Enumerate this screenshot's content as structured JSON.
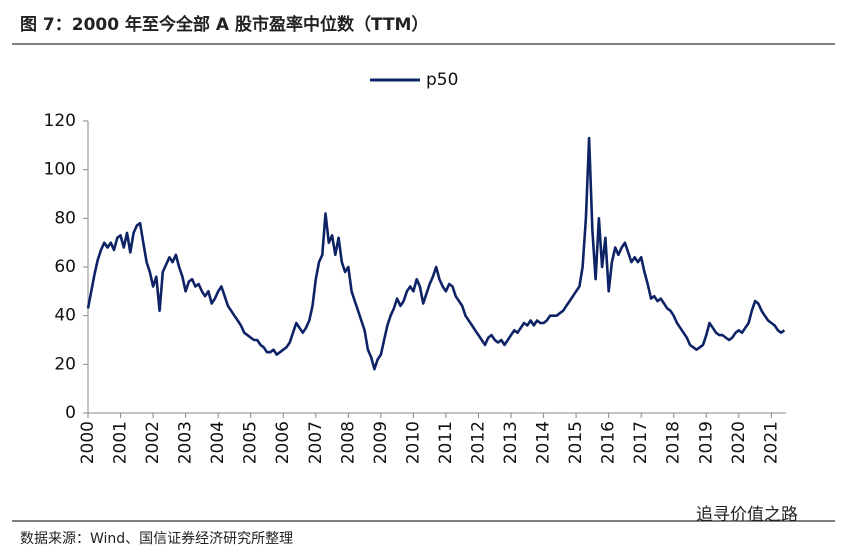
{
  "chart_data": {
    "type": "line",
    "title": "图 7：2000 年至今全部 A 股市盈率中位数（TTM）",
    "source": "数据来源：Wind、国信证券经济研究所整理",
    "watermark": "追寻价值之路",
    "legend": "top",
    "xlim": [
      2000,
      2021.45
    ],
    "xticks": [
      2000,
      2001,
      2002,
      2003,
      2004,
      2005,
      2006,
      2007,
      2008,
      2009,
      2010,
      2011,
      2012,
      2013,
      2014,
      2015,
      2016,
      2017,
      2018,
      2019,
      2020,
      2021
    ],
    "ylim": [
      0,
      120
    ],
    "yticks": [
      0,
      20,
      40,
      60,
      80,
      100,
      120
    ],
    "x": [
      2000.0,
      2000.1,
      2000.2,
      2000.3,
      2000.4,
      2000.5,
      2000.6,
      2000.7,
      2000.8,
      2000.9,
      2001.0,
      2001.1,
      2001.2,
      2001.3,
      2001.4,
      2001.5,
      2001.6,
      2001.7,
      2001.8,
      2001.9,
      2002.0,
      2002.1,
      2002.2,
      2002.3,
      2002.4,
      2002.5,
      2002.6,
      2002.7,
      2002.8,
      2002.9,
      2003.0,
      2003.1,
      2003.2,
      2003.3,
      2003.4,
      2003.5,
      2003.6,
      2003.7,
      2003.8,
      2003.9,
      2004.0,
      2004.1,
      2004.2,
      2004.3,
      2004.4,
      2004.5,
      2004.6,
      2004.7,
      2004.8,
      2004.9,
      2005.0,
      2005.1,
      2005.2,
      2005.3,
      2005.4,
      2005.5,
      2005.6,
      2005.7,
      2005.8,
      2005.9,
      2006.0,
      2006.1,
      2006.2,
      2006.3,
      2006.4,
      2006.5,
      2006.6,
      2006.7,
      2006.8,
      2006.9,
      2007.0,
      2007.1,
      2007.2,
      2007.3,
      2007.4,
      2007.5,
      2007.6,
      2007.7,
      2007.8,
      2007.9,
      2008.0,
      2008.1,
      2008.2,
      2008.3,
      2008.4,
      2008.5,
      2008.6,
      2008.7,
      2008.8,
      2008.9,
      2009.0,
      2009.1,
      2009.2,
      2009.3,
      2009.4,
      2009.5,
      2009.6,
      2009.7,
      2009.8,
      2009.9,
      2010.0,
      2010.1,
      2010.2,
      2010.3,
      2010.4,
      2010.5,
      2010.6,
      2010.7,
      2010.8,
      2010.9,
      2011.0,
      2011.1,
      2011.2,
      2011.3,
      2011.4,
      2011.5,
      2011.6,
      2011.7,
      2011.8,
      2011.9,
      2012.0,
      2012.1,
      2012.2,
      2012.3,
      2012.4,
      2012.5,
      2012.6,
      2012.7,
      2012.8,
      2012.9,
      2013.0,
      2013.1,
      2013.2,
      2013.3,
      2013.4,
      2013.5,
      2013.6,
      2013.7,
      2013.8,
      2013.9,
      2014.0,
      2014.1,
      2014.2,
      2014.3,
      2014.4,
      2014.5,
      2014.6,
      2014.7,
      2014.8,
      2014.9,
      2015.0,
      2015.1,
      2015.2,
      2015.3,
      2015.4,
      2015.5,
      2015.6,
      2015.7,
      2015.8,
      2015.9,
      2016.0,
      2016.1,
      2016.2,
      2016.3,
      2016.4,
      2016.5,
      2016.6,
      2016.7,
      2016.8,
      2016.9,
      2017.0,
      2017.1,
      2017.2,
      2017.3,
      2017.4,
      2017.5,
      2017.6,
      2017.7,
      2017.8,
      2017.9,
      2018.0,
      2018.1,
      2018.2,
      2018.3,
      2018.4,
      2018.5,
      2018.6,
      2018.7,
      2018.8,
      2018.9,
      2019.0,
      2019.1,
      2019.2,
      2019.3,
      2019.4,
      2019.5,
      2019.6,
      2019.7,
      2019.8,
      2019.9,
      2020.0,
      2020.1,
      2020.2,
      2020.3,
      2020.4,
      2020.5,
      2020.6,
      2020.7,
      2020.8,
      2020.9,
      2021.0,
      2021.1,
      2021.2,
      2021.3,
      2021.4
    ],
    "series": [
      {
        "name": "p50",
        "color": "#0d2366",
        "values": [
          43,
          50,
          57,
          63,
          67,
          70,
          68,
          70,
          67,
          72,
          73,
          68,
          74,
          66,
          74,
          77,
          78,
          70,
          62,
          58,
          52,
          56,
          42,
          58,
          61,
          64,
          62,
          65,
          60,
          56,
          50,
          54,
          55,
          52,
          53,
          50,
          48,
          50,
          45,
          47,
          50,
          52,
          48,
          44,
          42,
          40,
          38,
          36,
          33,
          32,
          31,
          30,
          30,
          28,
          27,
          25,
          25,
          26,
          24,
          25,
          26,
          27,
          29,
          33,
          37,
          35,
          33,
          35,
          38,
          44,
          55,
          62,
          65,
          82,
          70,
          73,
          65,
          72,
          62,
          58,
          60,
          50,
          46,
          42,
          38,
          34,
          26,
          23,
          18,
          22,
          24,
          30,
          36,
          40,
          43,
          47,
          44,
          46,
          50,
          52,
          50,
          55,
          52,
          45,
          49,
          53,
          56,
          60,
          55,
          52,
          50,
          53,
          52,
          48,
          46,
          44,
          40,
          38,
          36,
          34,
          32,
          30,
          28,
          31,
          32,
          30,
          29,
          30,
          28,
          30,
          32,
          34,
          33,
          35,
          37,
          36,
          38,
          36,
          38,
          37,
          37,
          38,
          40,
          40,
          40,
          41,
          42,
          44,
          46,
          48,
          50,
          52,
          60,
          80,
          113,
          75,
          55,
          80,
          60,
          72,
          50,
          62,
          68,
          65,
          68,
          70,
          66,
          62,
          64,
          62,
          64,
          58,
          53,
          47,
          48,
          46,
          47,
          45,
          43,
          42,
          40,
          37,
          35,
          33,
          31,
          28,
          27,
          26,
          27,
          28,
          32,
          37,
          35,
          33,
          32,
          32,
          31,
          30,
          31,
          33,
          34,
          33,
          35,
          37,
          42,
          46,
          45,
          42,
          40,
          38,
          37,
          36,
          34,
          33,
          34
        ]
      }
    ]
  }
}
